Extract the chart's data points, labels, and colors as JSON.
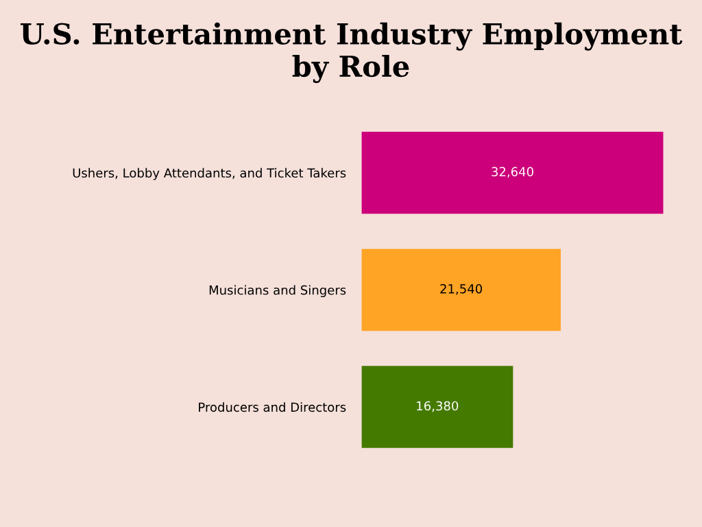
{
  "chart_data": {
    "type": "bar",
    "orientation": "horizontal",
    "title": "U.S. Entertainment Industry Employment by Role",
    "categories": [
      "Ushers, Lobby Attendants, and Ticket Takers",
      "Musicians and Singers",
      "Producers and Directors"
    ],
    "values": [
      32640,
      21540,
      16380
    ],
    "colors": [
      "#cc007a",
      "#ffa424",
      "#457a00"
    ],
    "value_labels": [
      "32,640",
      "21,540",
      "16,380"
    ],
    "grid": false,
    "legend": false
  }
}
